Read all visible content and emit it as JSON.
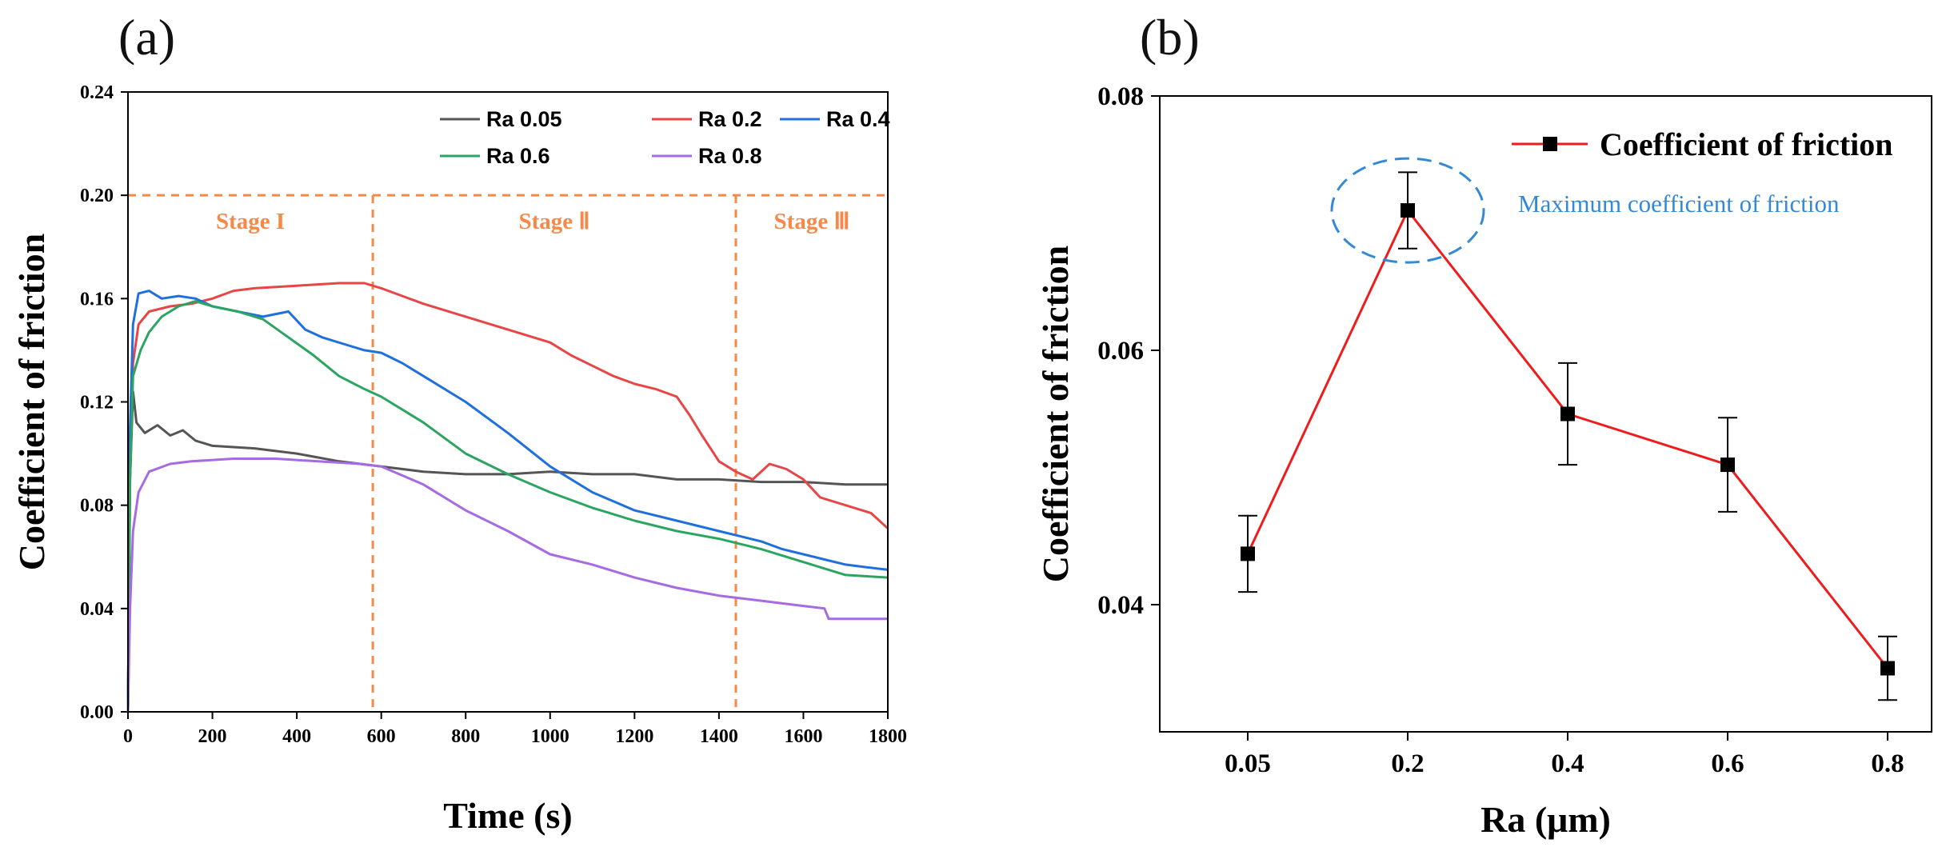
{
  "figure": {
    "label_a": "(a)",
    "label_b": "(b)"
  },
  "colors": {
    "Ra 0.05": "#555555",
    "Ra 0.2": "#e84646",
    "Ra 0.4": "#1f6fdc",
    "Ra 0.6": "#2ca560",
    "Ra 0.8": "#a66be0",
    "stage": "#f5894a",
    "red_line": "#ee1c1c",
    "ellipse": "#3389d6"
  },
  "chart_data": [
    {
      "type": "line",
      "panel": "(a)",
      "title": "",
      "xlabel": "Time (s)",
      "ylabel": "Coefficient of friction",
      "xlim": [
        0,
        1800
      ],
      "ylim": [
        0,
        0.24
      ],
      "xticks": [
        "0",
        "200",
        "400",
        "600",
        "800",
        "1000",
        "1200",
        "1400",
        "1600",
        "1800"
      ],
      "yticks": [
        "0.00",
        "0.04",
        "0.08",
        "0.12",
        "0.16",
        "0.20",
        "0.24"
      ],
      "legend_position": "top-right",
      "series": [
        {
          "name": "Ra 0.05",
          "points": [
            [
              0,
              0
            ],
            [
              5,
              0.09
            ],
            [
              12,
              0.124
            ],
            [
              20,
              0.112
            ],
            [
              40,
              0.108
            ],
            [
              70,
              0.111
            ],
            [
              100,
              0.107
            ],
            [
              130,
              0.109
            ],
            [
              160,
              0.105
            ],
            [
              200,
              0.103
            ],
            [
              300,
              0.102
            ],
            [
              400,
              0.1
            ],
            [
              500,
              0.097
            ],
            [
              600,
              0.095
            ],
            [
              700,
              0.093
            ],
            [
              800,
              0.092
            ],
            [
              900,
              0.092
            ],
            [
              1000,
              0.093
            ],
            [
              1100,
              0.092
            ],
            [
              1200,
              0.092
            ],
            [
              1300,
              0.09
            ],
            [
              1400,
              0.09
            ],
            [
              1500,
              0.089
            ],
            [
              1600,
              0.089
            ],
            [
              1700,
              0.088
            ],
            [
              1800,
              0.088
            ]
          ]
        },
        {
          "name": "Ra 0.2",
          "points": [
            [
              0,
              0
            ],
            [
              5,
              0.1
            ],
            [
              12,
              0.135
            ],
            [
              25,
              0.15
            ],
            [
              50,
              0.155
            ],
            [
              100,
              0.157
            ],
            [
              150,
              0.158
            ],
            [
              200,
              0.16
            ],
            [
              250,
              0.163
            ],
            [
              300,
              0.164
            ],
            [
              400,
              0.165
            ],
            [
              500,
              0.166
            ],
            [
              560,
              0.166
            ],
            [
              600,
              0.164
            ],
            [
              700,
              0.158
            ],
            [
              800,
              0.153
            ],
            [
              900,
              0.148
            ],
            [
              1000,
              0.143
            ],
            [
              1050,
              0.138
            ],
            [
              1100,
              0.134
            ],
            [
              1150,
              0.13
            ],
            [
              1200,
              0.127
            ],
            [
              1250,
              0.125
            ],
            [
              1300,
              0.122
            ],
            [
              1330,
              0.115
            ],
            [
              1360,
              0.107
            ],
            [
              1400,
              0.097
            ],
            [
              1440,
              0.093
            ],
            [
              1480,
              0.09
            ],
            [
              1520,
              0.096
            ],
            [
              1560,
              0.094
            ],
            [
              1600,
              0.09
            ],
            [
              1640,
              0.083
            ],
            [
              1700,
              0.08
            ],
            [
              1760,
              0.077
            ],
            [
              1800,
              0.071
            ]
          ]
        },
        {
          "name": "Ra 0.4",
          "points": [
            [
              0,
              0
            ],
            [
              5,
              0.11
            ],
            [
              12,
              0.15
            ],
            [
              25,
              0.162
            ],
            [
              50,
              0.163
            ],
            [
              80,
              0.16
            ],
            [
              120,
              0.161
            ],
            [
              160,
              0.16
            ],
            [
              200,
              0.157
            ],
            [
              260,
              0.155
            ],
            [
              320,
              0.153
            ],
            [
              380,
              0.155
            ],
            [
              420,
              0.148
            ],
            [
              460,
              0.145
            ],
            [
              520,
              0.142
            ],
            [
              560,
              0.14
            ],
            [
              600,
              0.139
            ],
            [
              650,
              0.135
            ],
            [
              700,
              0.13
            ],
            [
              800,
              0.12
            ],
            [
              900,
              0.108
            ],
            [
              1000,
              0.095
            ],
            [
              1100,
              0.085
            ],
            [
              1200,
              0.078
            ],
            [
              1300,
              0.074
            ],
            [
              1350,
              0.072
            ],
            [
              1400,
              0.07
            ],
            [
              1450,
              0.068
            ],
            [
              1500,
              0.066
            ],
            [
              1550,
              0.063
            ],
            [
              1600,
              0.061
            ],
            [
              1650,
              0.059
            ],
            [
              1700,
              0.057
            ],
            [
              1750,
              0.056
            ],
            [
              1800,
              0.055
            ]
          ]
        },
        {
          "name": "Ra 0.6",
          "points": [
            [
              0,
              0
            ],
            [
              5,
              0.09
            ],
            [
              12,
              0.13
            ],
            [
              30,
              0.14
            ],
            [
              50,
              0.147
            ],
            [
              80,
              0.153
            ],
            [
              120,
              0.157
            ],
            [
              160,
              0.159
            ],
            [
              200,
              0.157
            ],
            [
              260,
              0.155
            ],
            [
              320,
              0.152
            ],
            [
              380,
              0.145
            ],
            [
              440,
              0.138
            ],
            [
              500,
              0.13
            ],
            [
              560,
              0.125
            ],
            [
              600,
              0.122
            ],
            [
              700,
              0.112
            ],
            [
              800,
              0.1
            ],
            [
              900,
              0.092
            ],
            [
              1000,
              0.085
            ],
            [
              1100,
              0.079
            ],
            [
              1200,
              0.074
            ],
            [
              1300,
              0.07
            ],
            [
              1400,
              0.067
            ],
            [
              1500,
              0.063
            ],
            [
              1600,
              0.058
            ],
            [
              1700,
              0.053
            ],
            [
              1800,
              0.052
            ]
          ]
        },
        {
          "name": "Ra 0.8",
          "points": [
            [
              0,
              0
            ],
            [
              5,
              0.04
            ],
            [
              12,
              0.07
            ],
            [
              25,
              0.085
            ],
            [
              50,
              0.093
            ],
            [
              100,
              0.096
            ],
            [
              150,
              0.097
            ],
            [
              250,
              0.098
            ],
            [
              350,
              0.098
            ],
            [
              450,
              0.097
            ],
            [
              550,
              0.096
            ],
            [
              600,
              0.095
            ],
            [
              700,
              0.088
            ],
            [
              800,
              0.078
            ],
            [
              900,
              0.07
            ],
            [
              1000,
              0.061
            ],
            [
              1100,
              0.057
            ],
            [
              1200,
              0.052
            ],
            [
              1300,
              0.048
            ],
            [
              1400,
              0.045
            ],
            [
              1500,
              0.043
            ],
            [
              1600,
              0.041
            ],
            [
              1650,
              0.04
            ],
            [
              1660,
              0.036
            ],
            [
              1700,
              0.036
            ],
            [
              1800,
              0.036
            ]
          ]
        }
      ],
      "stage_boundaries": [
        580,
        1440
      ],
      "stage_cap": 0.2,
      "stage_labels": [
        "Stage I",
        "Stage Ⅱ",
        "Stage Ⅲ"
      ]
    },
    {
      "type": "line",
      "panel": "(b)",
      "title": "",
      "xlabel": "Ra (μm)",
      "ylabel": "Coefficient of friction",
      "categories": [
        "0.05",
        "0.2",
        "0.4",
        "0.6",
        "0.8"
      ],
      "ylim": [
        0.03,
        0.08
      ],
      "yticks": [
        "0.04",
        "0.06",
        "0.08"
      ],
      "legend_position": "top-right",
      "series": [
        {
          "name": "Coefficient of friction",
          "values": [
            0.044,
            0.071,
            0.055,
            0.051,
            0.035
          ],
          "errors": [
            0.003,
            0.003,
            0.004,
            0.0037,
            0.0025
          ]
        }
      ],
      "annotation": "Maximum coefficient of friction"
    }
  ]
}
